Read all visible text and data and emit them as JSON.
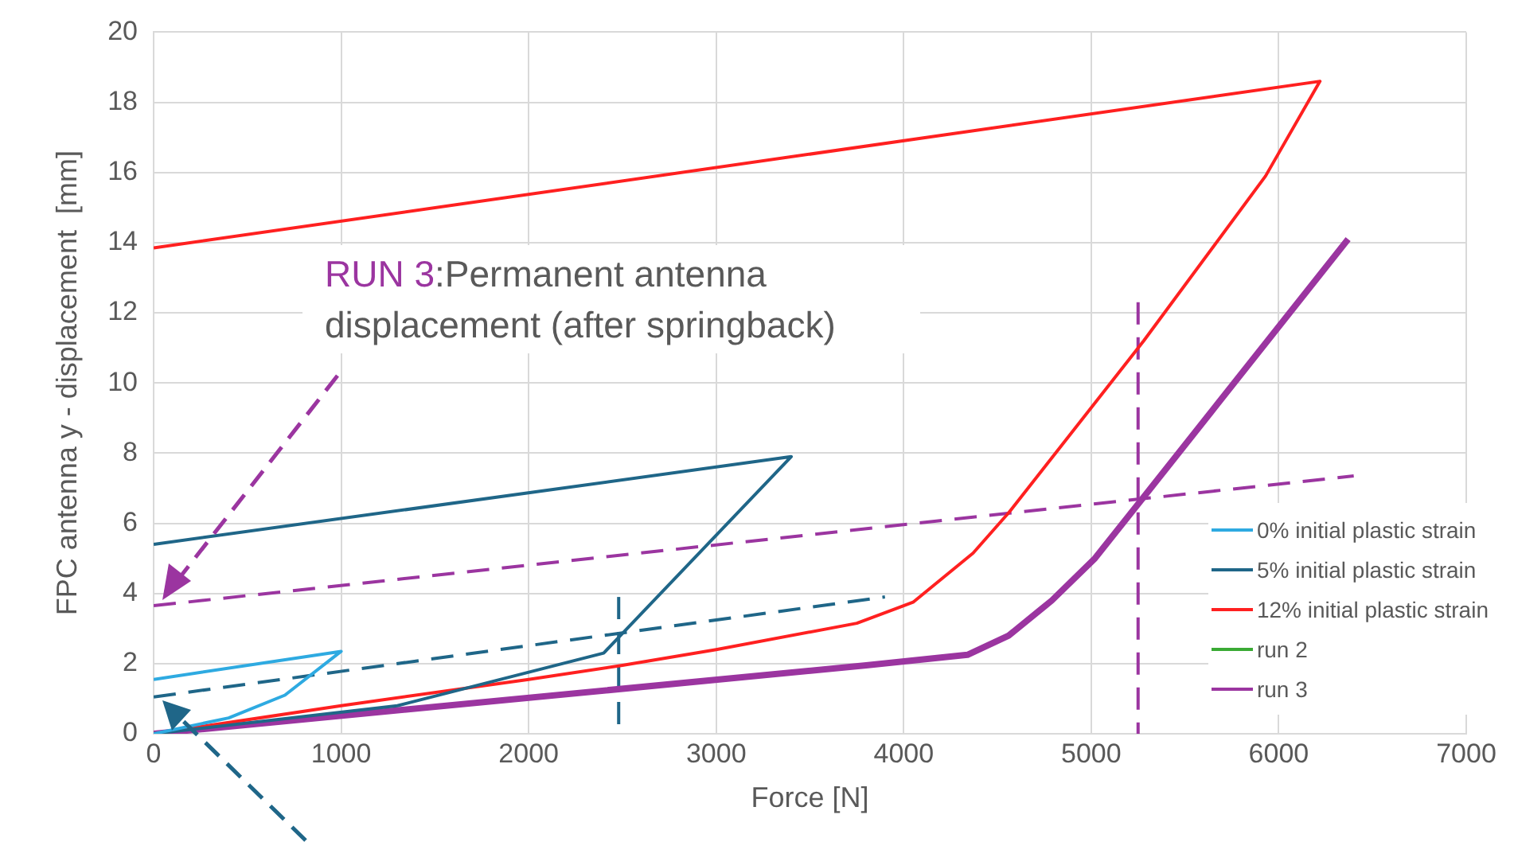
{
  "chart_data": {
    "type": "line",
    "xlabel": "Force [N]",
    "ylabel": "FPC antenna y - displacement  [mm]",
    "xlim": [
      0,
      7000
    ],
    "xticks": [
      0,
      1000,
      2000,
      3000,
      4000,
      5000,
      6000,
      7000
    ],
    "ylim": [
      0,
      20
    ],
    "yticks": [
      0,
      2,
      4,
      6,
      8,
      10,
      12,
      14,
      16,
      18,
      20
    ],
    "grid": true,
    "legend": "right",
    "marker": "none",
    "annotations": [
      "RUN 3:Permanent antenna displacement (after springback)"
    ],
    "series": [
      {
        "name": "0% initial plastic strain",
        "color": "#2eaae1",
        "x": [
          0,
          400,
          700,
          1000,
          0
        ],
        "values": [
          0,
          0.45,
          1.1,
          2.35,
          1.55
        ]
      },
      {
        "name": "5% initial plastic strain",
        "color": "#1f6688",
        "x": [
          0,
          1300,
          2400,
          3400,
          0
        ],
        "values": [
          0,
          0.8,
          2.3,
          7.9,
          5.4
        ]
      },
      {
        "name": "12% initial plastic strain",
        "color": "#ff2020",
        "x": [
          0,
          1000,
          2000,
          2500,
          3000,
          3750,
          4050,
          4370,
          4560,
          5280,
          5930,
          6220,
          0
        ],
        "values": [
          0,
          0.8,
          1.55,
          1.95,
          2.4,
          3.15,
          3.75,
          5.15,
          6.3,
          11.2,
          15.9,
          18.6,
          13.85
        ]
      },
      {
        "name": "run 2",
        "color": "#3aaa35",
        "values": [
          null
        ]
      },
      {
        "name": "run 3",
        "color": "#9b35a0",
        "x": [
          0,
          3800,
          4340,
          4560,
          4790,
          5020,
          5280,
          6370
        ],
        "values": [
          0,
          1.95,
          2.25,
          2.8,
          3.8,
          5.0,
          6.75,
          14.1
        ]
      },
      {
        "color": "#9b35a0",
        "line_style": "dashed",
        "x": [
          0,
          6400
        ],
        "values": [
          3.65,
          7.35
        ]
      },
      {
        "color": "#1f6688",
        "line_style": "dashed",
        "x": [
          0,
          3900
        ],
        "values": [
          1.05,
          3.9
        ]
      },
      {
        "color": "#1f6688",
        "line_style": "dashed",
        "x": [
          2480,
          2480
        ],
        "values": [
          3.9,
          0
        ]
      },
      {
        "color": "#9b35a0",
        "line_style": "dashed",
        "x": [
          5250,
          5250
        ],
        "values": [
          12.3,
          0
        ]
      }
    ]
  }
}
